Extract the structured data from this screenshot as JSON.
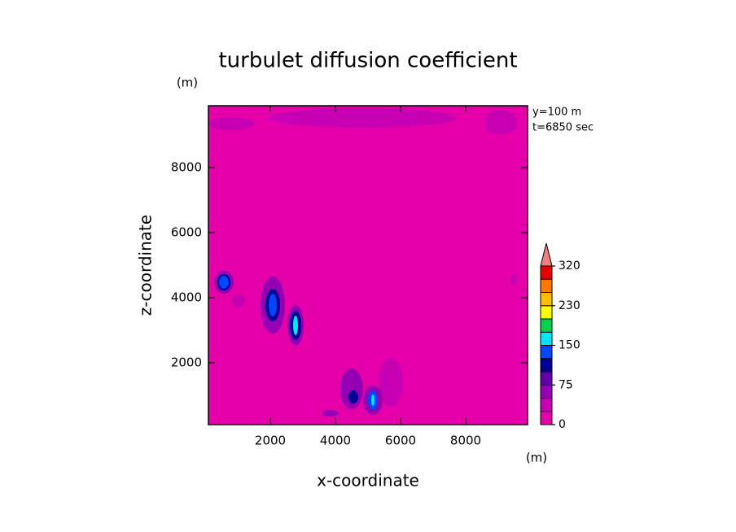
{
  "chart_data": {
    "type": "contour",
    "title": "turbulet diffusion coefficient",
    "x_label": "x-coordinate",
    "y_label": "z-coordinate",
    "x_unit": "(m)",
    "y_unit": "(m)",
    "annotations": [
      "y=100 m",
      "t=6850 sec"
    ],
    "xlim": [
      100,
      9900
    ],
    "ylim": [
      100,
      9900
    ],
    "xticks": [
      2000,
      4000,
      6000,
      8000
    ],
    "yticks": [
      2000,
      4000,
      6000,
      8000
    ],
    "levels": [
      0,
      25,
      50,
      75,
      100,
      125,
      150,
      175,
      200,
      230,
      260,
      290,
      320
    ],
    "level_ticks": [
      0,
      75,
      150,
      230,
      320
    ],
    "colors": [
      "#e600aa",
      "#c800b4",
      "#9600b4",
      "#6400aa",
      "#000096",
      "#0046ff",
      "#00e6ff",
      "#00d250",
      "#ffff00",
      "#ffbe00",
      "#ff7800",
      "#e60000"
    ],
    "over_color": "#f08080",
    "features": [
      {
        "x": 4825,
        "z": 9525,
        "rx": 2875,
        "rz": 300,
        "value": 25
      },
      {
        "x": 825,
        "z": 9350,
        "rx": 700,
        "rz": 200,
        "value": 25
      },
      {
        "x": 9075,
        "z": 9400,
        "rx": 500,
        "rz": 375,
        "value": 25
      },
      {
        "x": 5700,
        "z": 1400,
        "rx": 375,
        "rz": 750,
        "value": 25
      },
      {
        "x": 1025,
        "z": 3900,
        "rx": 200,
        "rz": 200,
        "value": 25
      },
      {
        "x": 9475,
        "z": 4575,
        "rx": 100,
        "rz": 200,
        "value": 25
      },
      {
        "x": 575,
        "z": 4475,
        "rx": 300,
        "rz": 350,
        "value": 50
      },
      {
        "x": 575,
        "z": 4475,
        "rx": 200,
        "rz": 250,
        "value": 100
      },
      {
        "x": 575,
        "z": 4475,
        "rx": 150,
        "rz": 200,
        "value": 125
      },
      {
        "x": 2075,
        "z": 3775,
        "rx": 375,
        "rz": 875,
        "value": 50
      },
      {
        "x": 2075,
        "z": 3775,
        "rx": 225,
        "rz": 500,
        "value": 100
      },
      {
        "x": 2075,
        "z": 3775,
        "rx": 125,
        "rz": 350,
        "value": 125
      },
      {
        "x": 2775,
        "z": 3150,
        "rx": 250,
        "rz": 625,
        "value": 50
      },
      {
        "x": 2775,
        "z": 3150,
        "rx": 175,
        "rz": 450,
        "value": 100
      },
      {
        "x": 2775,
        "z": 3150,
        "rx": 75,
        "rz": 300,
        "value": 150
      },
      {
        "x": 4500,
        "z": 1200,
        "rx": 350,
        "rz": 625,
        "value": 50
      },
      {
        "x": 4550,
        "z": 950,
        "rx": 150,
        "rz": 200,
        "value": 100
      },
      {
        "x": 5150,
        "z": 850,
        "rx": 300,
        "rz": 450,
        "value": 50
      },
      {
        "x": 5150,
        "z": 850,
        "rx": 150,
        "rz": 300,
        "value": 125
      },
      {
        "x": 5150,
        "z": 850,
        "rx": 50,
        "rz": 175,
        "value": 150
      },
      {
        "x": 3850,
        "z": 450,
        "rx": 250,
        "rz": 100,
        "value": 50
      }
    ]
  }
}
